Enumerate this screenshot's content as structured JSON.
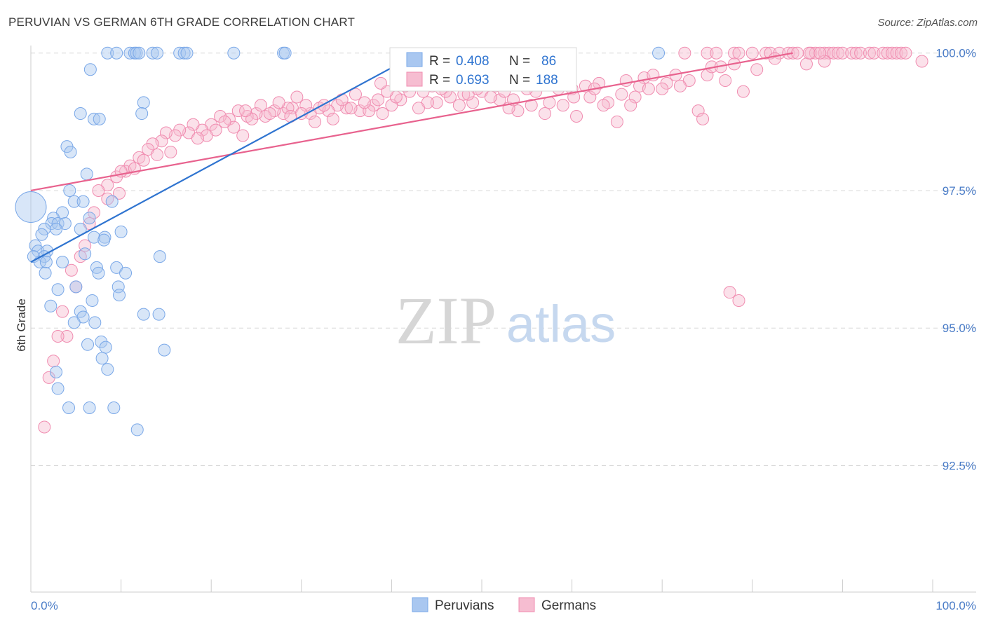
{
  "title": "PERUVIAN VS GERMAN 6TH GRADE CORRELATION CHART",
  "source": "Source: ZipAtlas.com",
  "watermark": {
    "zip": "ZIP",
    "atlas": "atlas"
  },
  "colors": {
    "peruvians": "#7aa8e8",
    "peruvians_fill": "#a9c7f0",
    "peruvians_line": "#2f74d0",
    "germans": "#f08cb0",
    "germans_fill": "#f6bdd1",
    "germans_line": "#e8628e",
    "tick_label": "#4a7cc7",
    "grid": "#d8d8d8"
  },
  "legend_top": {
    "rows": [
      {
        "r_label": "R = ",
        "r_value": "0.408",
        "n_label": "N = ",
        "n_value": "86",
        "series": "peruvians"
      },
      {
        "r_label": "R = ",
        "r_value": "0.693",
        "n_label": "N = ",
        "n_value": "188",
        "series": "germans"
      }
    ]
  },
  "legend_bottom": {
    "peruvians": "Peruvians",
    "germans": "Germans"
  },
  "chart_data": {
    "type": "scatter",
    "title": "PERUVIAN VS GERMAN 6TH GRADE CORRELATION CHART",
    "xlabel": "",
    "ylabel": "6th Grade",
    "xlim": [
      0,
      100
    ],
    "ylim": [
      90.2,
      100.2
    ],
    "x_tick_labels": [
      "0.0%",
      "100.0%"
    ],
    "y_ticks": [
      92.5,
      95.0,
      97.5,
      100.0
    ],
    "y_tick_labels": [
      "92.5%",
      "95.0%",
      "97.5%",
      "100.0%"
    ],
    "grid": true,
    "legend_position": "top-center",
    "series": [
      {
        "name": "Peruvians",
        "r": 0.408,
        "n": 86,
        "trend": {
          "x": [
            0.0,
            42.7
          ],
          "y": [
            96.2,
            99.97
          ]
        },
        "points": [
          [
            8.5,
            100
          ],
          [
            9.5,
            100
          ],
          [
            11.0,
            100
          ],
          [
            11.5,
            100
          ],
          [
            11.7,
            100
          ],
          [
            12.0,
            100
          ],
          [
            13.5,
            100
          ],
          [
            14.0,
            100
          ],
          [
            16.5,
            100
          ],
          [
            17.0,
            100
          ],
          [
            17.3,
            100
          ],
          [
            22.5,
            100
          ],
          [
            28.0,
            100
          ],
          [
            28.2,
            100
          ],
          [
            69.6,
            100
          ],
          [
            6.6,
            99.7
          ],
          [
            12.5,
            99.1
          ],
          [
            12.3,
            98.9
          ],
          [
            5.5,
            98.9
          ],
          [
            7.0,
            98.8
          ],
          [
            7.6,
            98.8
          ],
          [
            4.0,
            98.3
          ],
          [
            4.4,
            98.2
          ],
          [
            6.2,
            97.8
          ],
          [
            4.3,
            97.5
          ],
          [
            4.8,
            97.3
          ],
          [
            5.8,
            97.3
          ],
          [
            9.0,
            97.3
          ],
          [
            0.0,
            97.2
          ],
          [
            3.5,
            97.1
          ],
          [
            2.5,
            97.0
          ],
          [
            6.5,
            97.0
          ],
          [
            2.3,
            96.9
          ],
          [
            3.0,
            96.9
          ],
          [
            3.8,
            96.9
          ],
          [
            1.5,
            96.8
          ],
          [
            2.8,
            96.8
          ],
          [
            5.5,
            96.8
          ],
          [
            10.0,
            96.75
          ],
          [
            1.2,
            96.7
          ],
          [
            7.0,
            96.65
          ],
          [
            8.2,
            96.65
          ],
          [
            8.1,
            96.6
          ],
          [
            0.5,
            96.5
          ],
          [
            0.8,
            96.4
          ],
          [
            1.8,
            96.4
          ],
          [
            6.0,
            96.35
          ],
          [
            0.3,
            96.3
          ],
          [
            1.5,
            96.3
          ],
          [
            14.3,
            96.3
          ],
          [
            1.0,
            96.2
          ],
          [
            1.7,
            96.2
          ],
          [
            3.5,
            96.2
          ],
          [
            7.3,
            96.1
          ],
          [
            9.5,
            96.1
          ],
          [
            7.5,
            96.0
          ],
          [
            1.6,
            96.0
          ],
          [
            10.5,
            96.0
          ],
          [
            5.0,
            95.75
          ],
          [
            9.7,
            95.75
          ],
          [
            3.0,
            95.7
          ],
          [
            9.8,
            95.6
          ],
          [
            2.2,
            95.4
          ],
          [
            6.8,
            95.5
          ],
          [
            5.5,
            95.3
          ],
          [
            12.5,
            95.25
          ],
          [
            14.2,
            95.25
          ],
          [
            5.8,
            95.2
          ],
          [
            4.8,
            95.1
          ],
          [
            7.1,
            95.1
          ],
          [
            7.8,
            94.75
          ],
          [
            6.3,
            94.7
          ],
          [
            8.3,
            94.65
          ],
          [
            14.8,
            94.6
          ],
          [
            7.9,
            94.45
          ],
          [
            8.5,
            94.25
          ],
          [
            2.8,
            94.2
          ],
          [
            3.0,
            93.9
          ],
          [
            4.2,
            93.55
          ],
          [
            6.5,
            93.55
          ],
          [
            9.2,
            93.55
          ],
          [
            11.8,
            93.15
          ]
        ],
        "sizes": {
          "0.0,97.2": "large"
        }
      },
      {
        "name": "Germans",
        "r": 0.693,
        "n": 188,
        "trend": {
          "x": [
            0.0,
            84.5
          ],
          "y": [
            97.5,
            100.0
          ]
        },
        "points": [
          [
            72.5,
            100
          ],
          [
            75.0,
            100
          ],
          [
            76.0,
            100
          ],
          [
            78.0,
            100
          ],
          [
            78.5,
            100
          ],
          [
            80.0,
            100
          ],
          [
            81.5,
            100
          ],
          [
            82.0,
            100
          ],
          [
            83.0,
            100
          ],
          [
            84.0,
            100
          ],
          [
            84.5,
            100
          ],
          [
            85.0,
            100
          ],
          [
            86.5,
            100
          ],
          [
            87.0,
            100
          ],
          [
            88.0,
            100
          ],
          [
            88.5,
            100
          ],
          [
            89.0,
            100
          ],
          [
            89.5,
            100
          ],
          [
            90.0,
            100
          ],
          [
            91.0,
            100
          ],
          [
            91.5,
            100
          ],
          [
            92.0,
            100
          ],
          [
            93.0,
            100
          ],
          [
            93.5,
            100
          ],
          [
            94.5,
            100
          ],
          [
            95.0,
            100
          ],
          [
            95.5,
            100
          ],
          [
            96.0,
            100
          ],
          [
            96.5,
            100
          ],
          [
            97.0,
            100
          ],
          [
            98.8,
            99.85
          ],
          [
            86.0,
            99.8
          ],
          [
            88.0,
            99.85
          ],
          [
            80.5,
            99.7
          ],
          [
            75.0,
            99.6
          ],
          [
            71.5,
            99.6
          ],
          [
            68.0,
            99.55
          ],
          [
            70.5,
            99.45
          ],
          [
            67.5,
            99.4
          ],
          [
            63.0,
            99.45
          ],
          [
            60.0,
            99.35
          ],
          [
            58.5,
            99.35
          ],
          [
            56.0,
            99.3
          ],
          [
            62.0,
            99.2
          ],
          [
            64.0,
            99.1
          ],
          [
            59.0,
            99.05
          ],
          [
            55.5,
            99.05
          ],
          [
            52.0,
            99.15
          ],
          [
            50.0,
            99.3
          ],
          [
            48.0,
            99.25
          ],
          [
            46.5,
            99.2
          ],
          [
            45.0,
            99.1
          ],
          [
            44.0,
            99.1
          ],
          [
            43.0,
            99.0
          ],
          [
            41.0,
            99.15
          ],
          [
            40.0,
            99.05
          ],
          [
            38.0,
            99.05
          ],
          [
            36.5,
            98.95
          ],
          [
            35.0,
            99.0
          ],
          [
            34.0,
            99.05
          ],
          [
            33.0,
            98.95
          ],
          [
            32.0,
            99.0
          ],
          [
            31.0,
            98.9
          ],
          [
            30.5,
            99.05
          ],
          [
            29.0,
            99.0
          ],
          [
            28.0,
            98.9
          ],
          [
            27.0,
            98.95
          ],
          [
            26.0,
            98.85
          ],
          [
            25.0,
            98.9
          ],
          [
            24.0,
            98.85
          ],
          [
            23.0,
            98.95
          ],
          [
            22.0,
            98.8
          ],
          [
            21.0,
            98.85
          ],
          [
            20.0,
            98.7
          ],
          [
            19.0,
            98.6
          ],
          [
            18.0,
            98.7
          ],
          [
            17.5,
            98.55
          ],
          [
            16.5,
            98.6
          ],
          [
            16.0,
            98.5
          ],
          [
            15.0,
            98.55
          ],
          [
            14.5,
            98.4
          ],
          [
            13.5,
            98.35
          ],
          [
            13.0,
            98.25
          ],
          [
            12.0,
            98.1
          ],
          [
            11.0,
            97.95
          ],
          [
            10.5,
            97.85
          ],
          [
            9.5,
            97.75
          ],
          [
            8.5,
            97.6
          ],
          [
            7.5,
            97.5
          ],
          [
            9.8,
            97.45
          ],
          [
            8.5,
            97.35
          ],
          [
            7.0,
            97.1
          ],
          [
            6.5,
            96.9
          ],
          [
            6.0,
            96.5
          ],
          [
            5.5,
            96.3
          ],
          [
            4.5,
            96.05
          ],
          [
            5.0,
            95.75
          ],
          [
            3.5,
            95.3
          ],
          [
            4.0,
            94.85
          ],
          [
            3.0,
            94.85
          ],
          [
            2.5,
            94.4
          ],
          [
            2.0,
            94.1
          ],
          [
            1.5,
            93.2
          ],
          [
            79.0,
            99.3
          ],
          [
            74.0,
            98.95
          ],
          [
            74.5,
            98.8
          ],
          [
            57.0,
            98.9
          ],
          [
            60.5,
            98.85
          ],
          [
            65.0,
            98.75
          ],
          [
            63.5,
            99.05
          ],
          [
            54.0,
            98.95
          ],
          [
            53.0,
            99.0
          ],
          [
            47.5,
            99.05
          ],
          [
            39.0,
            98.9
          ],
          [
            37.5,
            98.95
          ],
          [
            35.5,
            99.0
          ],
          [
            33.5,
            98.8
          ],
          [
            31.5,
            98.75
          ],
          [
            30.0,
            98.9
          ],
          [
            28.5,
            99.0
          ],
          [
            27.5,
            99.1
          ],
          [
            26.5,
            98.9
          ],
          [
            24.5,
            98.8
          ],
          [
            23.5,
            98.5
          ],
          [
            22.5,
            98.65
          ],
          [
            21.5,
            98.75
          ],
          [
            20.5,
            98.6
          ],
          [
            19.5,
            98.5
          ],
          [
            18.5,
            98.45
          ],
          [
            15.5,
            98.2
          ],
          [
            14.0,
            98.15
          ],
          [
            12.5,
            98.05
          ],
          [
            11.5,
            97.9
          ],
          [
            10.0,
            97.85
          ],
          [
            66.0,
            99.5
          ],
          [
            69.0,
            99.6
          ],
          [
            70.0,
            99.35
          ],
          [
            67.0,
            99.2
          ],
          [
            66.5,
            99.05
          ],
          [
            61.5,
            99.4
          ],
          [
            60.2,
            99.2
          ],
          [
            57.5,
            99.1
          ],
          [
            55.0,
            99.35
          ],
          [
            53.5,
            99.15
          ],
          [
            51.0,
            99.2
          ],
          [
            49.0,
            99.1
          ],
          [
            46.0,
            99.3
          ],
          [
            44.5,
            99.4
          ],
          [
            42.0,
            99.3
          ],
          [
            40.5,
            99.2
          ],
          [
            38.5,
            99.15
          ],
          [
            37.0,
            99.1
          ],
          [
            36.0,
            99.25
          ],
          [
            34.5,
            99.15
          ],
          [
            32.5,
            99.05
          ],
          [
            29.5,
            99.2
          ],
          [
            28.8,
            98.85
          ],
          [
            25.5,
            99.05
          ],
          [
            23.8,
            98.95
          ],
          [
            77.0,
            99.5
          ],
          [
            73.0,
            99.5
          ],
          [
            75.5,
            99.75
          ],
          [
            78.0,
            99.8
          ],
          [
            82.5,
            99.9
          ],
          [
            76.5,
            99.75
          ],
          [
            72.0,
            99.4
          ],
          [
            68.5,
            99.35
          ],
          [
            65.5,
            99.25
          ],
          [
            62.5,
            99.35
          ],
          [
            58.0,
            99.5
          ],
          [
            56.5,
            99.55
          ],
          [
            54.5,
            99.45
          ],
          [
            52.5,
            99.3
          ],
          [
            51.5,
            99.4
          ],
          [
            49.5,
            99.35
          ],
          [
            48.5,
            99.25
          ],
          [
            47.0,
            99.45
          ],
          [
            45.5,
            99.35
          ],
          [
            43.5,
            99.3
          ],
          [
            41.5,
            99.4
          ],
          [
            39.5,
            99.3
          ],
          [
            38.8,
            99.45
          ],
          [
            77.5,
            95.65
          ],
          [
            78.5,
            95.5
          ],
          [
            86.3,
            100
          ],
          [
            87.5,
            100
          ]
        ]
      }
    ]
  }
}
